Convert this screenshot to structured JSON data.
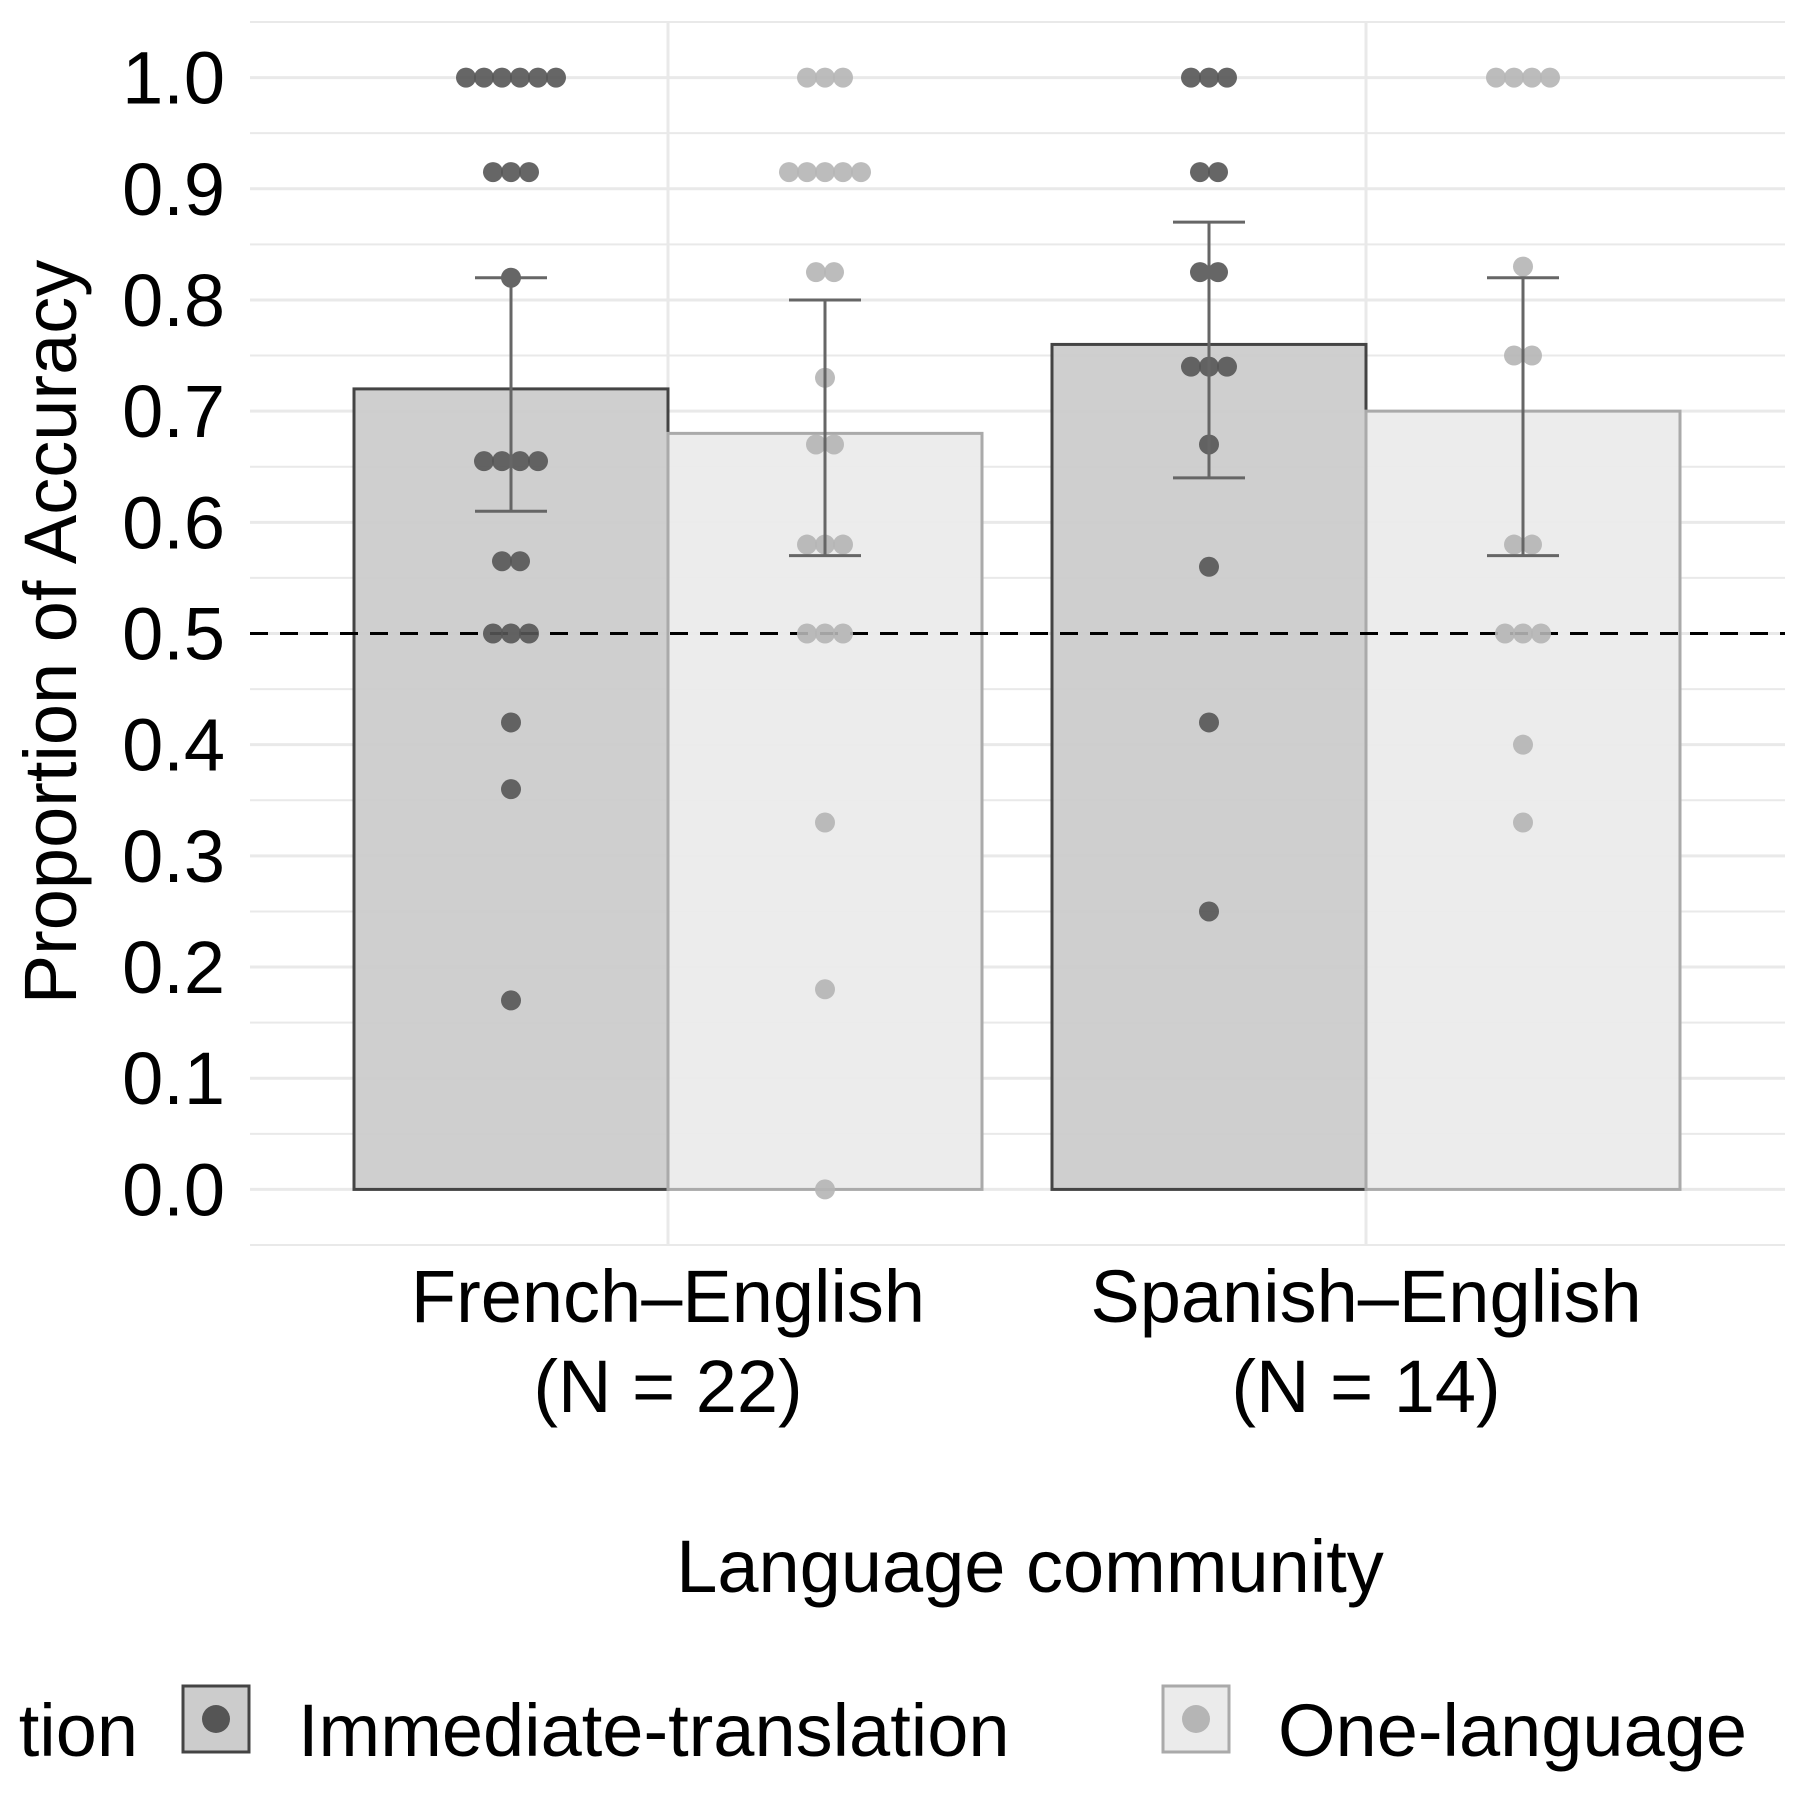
{
  "chart_data": {
    "type": "bar",
    "title": "",
    "xlabel": "Language community",
    "ylabel": "Proportion of Accuracy",
    "ylim": [
      -0.05,
      1.05
    ],
    "yticks": [
      "0.0",
      "0.1",
      "0.2",
      "0.3",
      "0.4",
      "0.5",
      "0.6",
      "0.7",
      "0.8",
      "0.9",
      "1.0"
    ],
    "categories": [
      {
        "line1": "French–English",
        "line2": "(N = 22)"
      },
      {
        "line1": "Spanish–English",
        "line2": "(N = 14)"
      }
    ],
    "reference_line": 0.5,
    "grid": true,
    "legend": {
      "position": "bottom",
      "title_visible": "tion",
      "entries": [
        "Immediate-translation",
        "One-language"
      ]
    },
    "series": [
      {
        "name": "Immediate-translation",
        "bar_fill": "#cccccc",
        "bar_stroke": "#444444",
        "point_color": "#555555",
        "values": [
          0.72,
          0.76
        ],
        "error_low": [
          0.61,
          0.64
        ],
        "error_high": [
          0.82,
          0.87
        ],
        "points": [
          [
            1.0,
            1.0,
            1.0,
            1.0,
            1.0,
            1.0,
            0.915,
            0.915,
            0.915,
            0.82,
            0.655,
            0.655,
            0.655,
            0.655,
            0.565,
            0.565,
            0.5,
            0.5,
            0.5,
            0.42,
            0.36,
            0.17
          ],
          [
            1.0,
            1.0,
            1.0,
            0.915,
            0.915,
            0.825,
            0.825,
            0.74,
            0.74,
            0.74,
            0.67,
            0.56,
            0.42,
            0.25
          ]
        ]
      },
      {
        "name": "One-language",
        "bar_fill": "#ebebeb",
        "bar_stroke": "#aaaaaa",
        "point_color": "#b5b5b5",
        "values": [
          0.68,
          0.7
        ],
        "error_low": [
          0.57,
          0.57
        ],
        "error_high": [
          0.8,
          0.82
        ],
        "points": [
          [
            1.0,
            1.0,
            1.0,
            0.915,
            0.915,
            0.915,
            0.915,
            0.915,
            0.825,
            0.825,
            0.73,
            0.67,
            0.67,
            0.58,
            0.58,
            0.58,
            0.5,
            0.5,
            0.5,
            0.33,
            0.18,
            0.0
          ],
          [
            1.0,
            1.0,
            1.0,
            1.0,
            0.83,
            0.75,
            0.75,
            0.58,
            0.58,
            0.5,
            0.5,
            0.5,
            0.4,
            0.33
          ]
        ]
      }
    ]
  }
}
